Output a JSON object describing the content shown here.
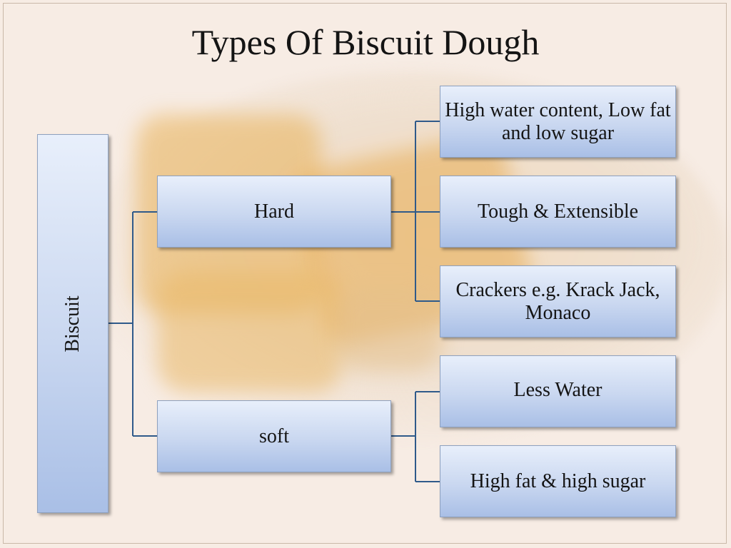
{
  "title": "Types Of Biscuit Dough",
  "colors": {
    "box_top": "#e8effb",
    "box_bottom": "#a9bfe6",
    "box_border": "#8ea1bf",
    "connector": "#2f5a8a",
    "background": "#f7ece4"
  },
  "root": {
    "label": "Biscuit"
  },
  "branches": [
    {
      "label": "Hard",
      "children": [
        {
          "label": "High water content, Low fat and low sugar"
        },
        {
          "label": "Tough & Extensible"
        },
        {
          "label": "Crackers e.g. Krack Jack, Monaco"
        }
      ]
    },
    {
      "label": "soft",
      "children": [
        {
          "label": "Less Water"
        },
        {
          "label": "High fat & high sugar"
        }
      ]
    }
  ]
}
